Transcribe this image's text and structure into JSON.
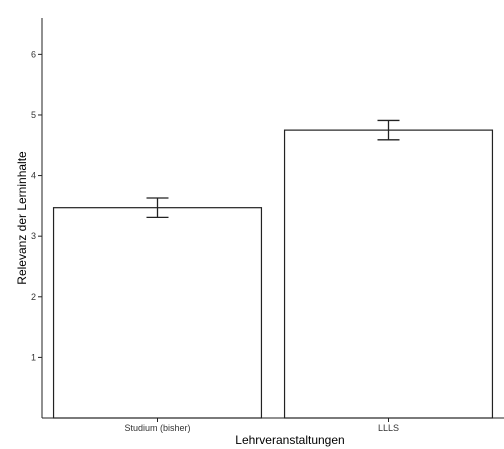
{
  "chart_data": {
    "type": "bar",
    "categories": [
      "Studium (bisher)",
      "LLLS"
    ],
    "values": [
      3.47,
      4.75
    ],
    "error_lower": [
      3.31,
      4.59
    ],
    "error_upper": [
      3.63,
      4.91
    ],
    "xlabel": "Lehrveranstaltungen",
    "ylabel": "Relevanz der Lerninhalte",
    "ylim": [
      0,
      6.6
    ],
    "yticks": [
      1,
      2,
      3,
      4,
      5,
      6
    ],
    "grid": false,
    "colors": {
      "bar_fill": "#ffffff",
      "bar_stroke": "#222222"
    }
  }
}
